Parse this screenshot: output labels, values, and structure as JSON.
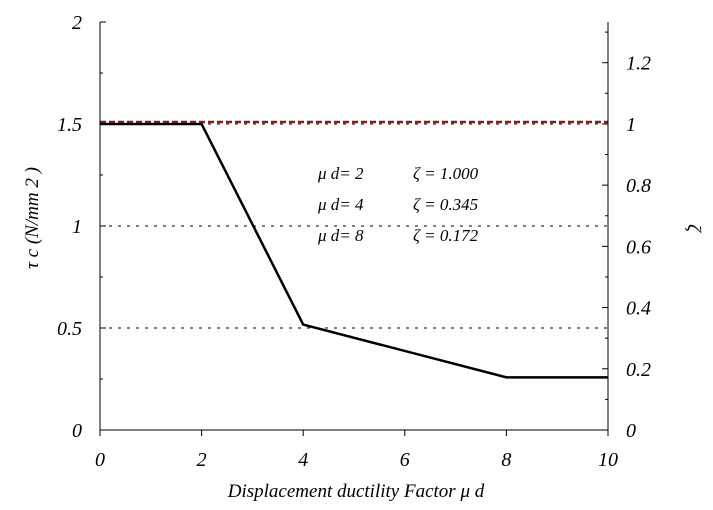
{
  "chart_data": {
    "type": "line",
    "xlabel": "Displacement ductility Factor μ d",
    "ylabel": "τ c (N/mm 2 )",
    "y2label": "ζ",
    "xlim": [
      0,
      10
    ],
    "ylim": [
      0,
      2
    ],
    "y2lim": [
      0,
      1.333
    ],
    "x_ticks": [
      "0",
      "2",
      "4",
      "6",
      "8",
      "10"
    ],
    "y_ticks": [
      "0",
      "0.5",
      "1",
      "1.5",
      "2"
    ],
    "y2_ticks": [
      "0",
      "0.2",
      "0.4",
      "0.6",
      "0.8",
      "1",
      "1.2"
    ],
    "grid_lines_y": [
      0.5,
      1,
      1.5
    ],
    "grid": "dashed horizontal",
    "series": [
      {
        "x": [
          0,
          2,
          4,
          8,
          10
        ],
        "y": [
          1.5,
          1.5,
          0.517,
          0.258,
          0.258
        ],
        "color": "#000000"
      }
    ],
    "reference_lines": [
      {
        "y": 1.51,
        "color": "#8b1a1a",
        "style": "dashed"
      }
    ],
    "annotations": [
      {
        "mu": "μ d= 2",
        "zeta": "ζ  = 1.000"
      },
      {
        "mu": "μ d= 4",
        "zeta": "ζ  = 0.345"
      },
      {
        "mu": "μ d= 8",
        "zeta": "ζ  = 0.172"
      }
    ]
  }
}
